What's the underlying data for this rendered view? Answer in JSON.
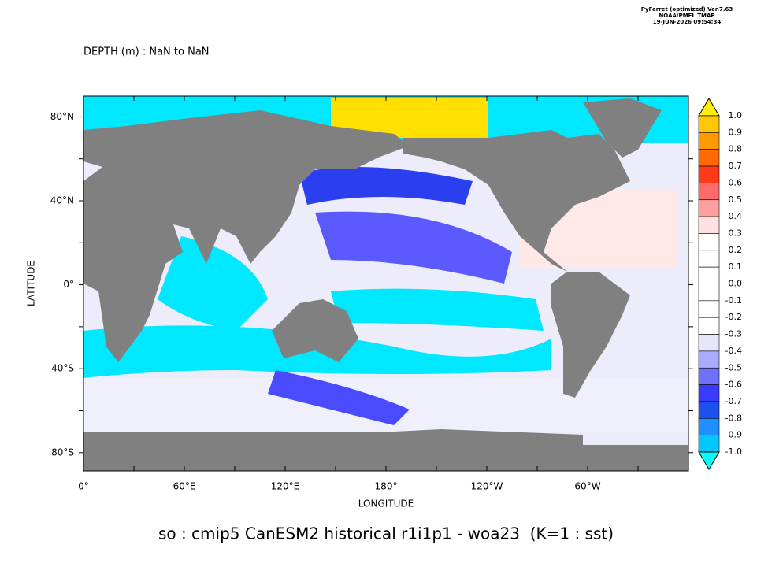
{
  "header": {
    "program": "PyFerret (optimized) Ver.7.63",
    "source": "NOAA/PMEL TMAP",
    "timestamp": "19-JUN-2026 09:54:34"
  },
  "title": "DEPTH (m) : NaN to NaN",
  "map": {
    "xlabel": "LONGITUDE",
    "ylabel": "LATITUDE",
    "xticks": [
      "0°",
      "60°E",
      "120°E",
      "180°",
      "120°W",
      "60°W"
    ],
    "yticks": [
      "80°N",
      "40°N",
      "0°",
      "40°S",
      "80°S"
    ]
  },
  "colorbar": {
    "labels": [
      "1.0",
      "0.9",
      "0.8",
      "0.7",
      "0.6",
      "0.5",
      "0.4",
      "0.3",
      "0.2",
      "0.1",
      "0.0",
      "-0.1",
      "-0.2",
      "-0.3",
      "-0.4",
      "-0.5",
      "-0.6",
      "-0.7",
      "-0.8",
      "-0.9",
      "-1.0"
    ]
  },
  "caption": "so : cmip5 CanESM2 historical r1i1p1 - woa23  (K=1 : sst)"
}
